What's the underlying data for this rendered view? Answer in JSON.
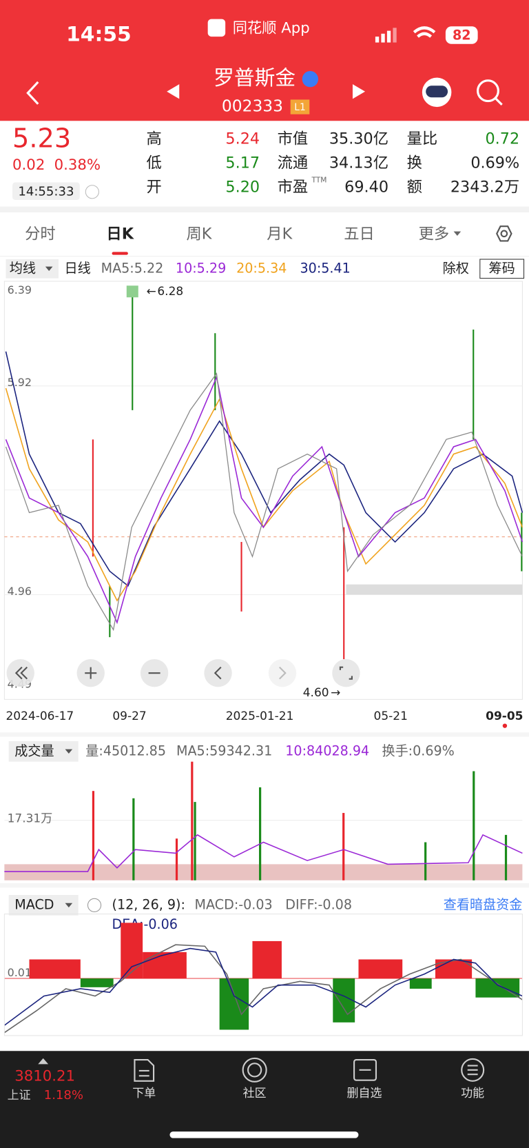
{
  "status_bar": {
    "time": "14:55",
    "app": "同花顺 App",
    "battery": "82"
  },
  "header": {
    "name": "罗普斯金",
    "code": "002333",
    "level": "L1"
  },
  "quote": {
    "price": "5.23",
    "change": "0.02",
    "change_pct": "0.38%",
    "time": "14:55:33",
    "stats": [
      {
        "label": "高",
        "value": "5.24"
      },
      {
        "label": "低",
        "value": "5.17"
      },
      {
        "label": "开",
        "value": "5.20"
      },
      {
        "label": "市值",
        "value": "35.30亿"
      },
      {
        "label": "流通",
        "value": "34.13亿"
      },
      {
        "label": "市盈",
        "value": "69.40",
        "sup": "TTM"
      },
      {
        "label": "量比",
        "value": "0.72"
      },
      {
        "label": "换",
        "value": "0.69%"
      },
      {
        "label": "额",
        "value": "2343.2万"
      }
    ]
  },
  "tabs": [
    "分时",
    "日K",
    "周K",
    "月K",
    "五日",
    "更多"
  ],
  "kline": {
    "indicator": "均线",
    "period": "日线",
    "ma": [
      "MA5:5.22",
      "10:5.29",
      "20:5.34",
      "30:5.41"
    ],
    "adjust": "除权",
    "chips": "筹码",
    "y_labels": [
      "6.39",
      "5.92",
      "4.96",
      "4.49"
    ],
    "high_label": "6.28",
    "low_label": "4.60",
    "dates": [
      "2024-06-17",
      "09-27",
      "2025-01-21",
      "05-21",
      "09-05"
    ]
  },
  "volume": {
    "title": "成交量",
    "stats": [
      "量:45012.85",
      "MA5:59342.31",
      "10:84028.94",
      "换手:0.69%"
    ],
    "y_label": "17.31万"
  },
  "macd": {
    "title": "MACD",
    "params": "(12, 26, 9):",
    "stats": [
      "MACD:-0.03",
      "DIFF:-0.08",
      "DEA:-0.06"
    ],
    "link": "查看暗盘资金",
    "y_label": "0.01"
  },
  "bottom_nav": {
    "index_value": "3810.21",
    "index_name": "上证",
    "index_pct": "1.18%",
    "items": [
      "下单",
      "社区",
      "删自选",
      "功能"
    ]
  }
}
